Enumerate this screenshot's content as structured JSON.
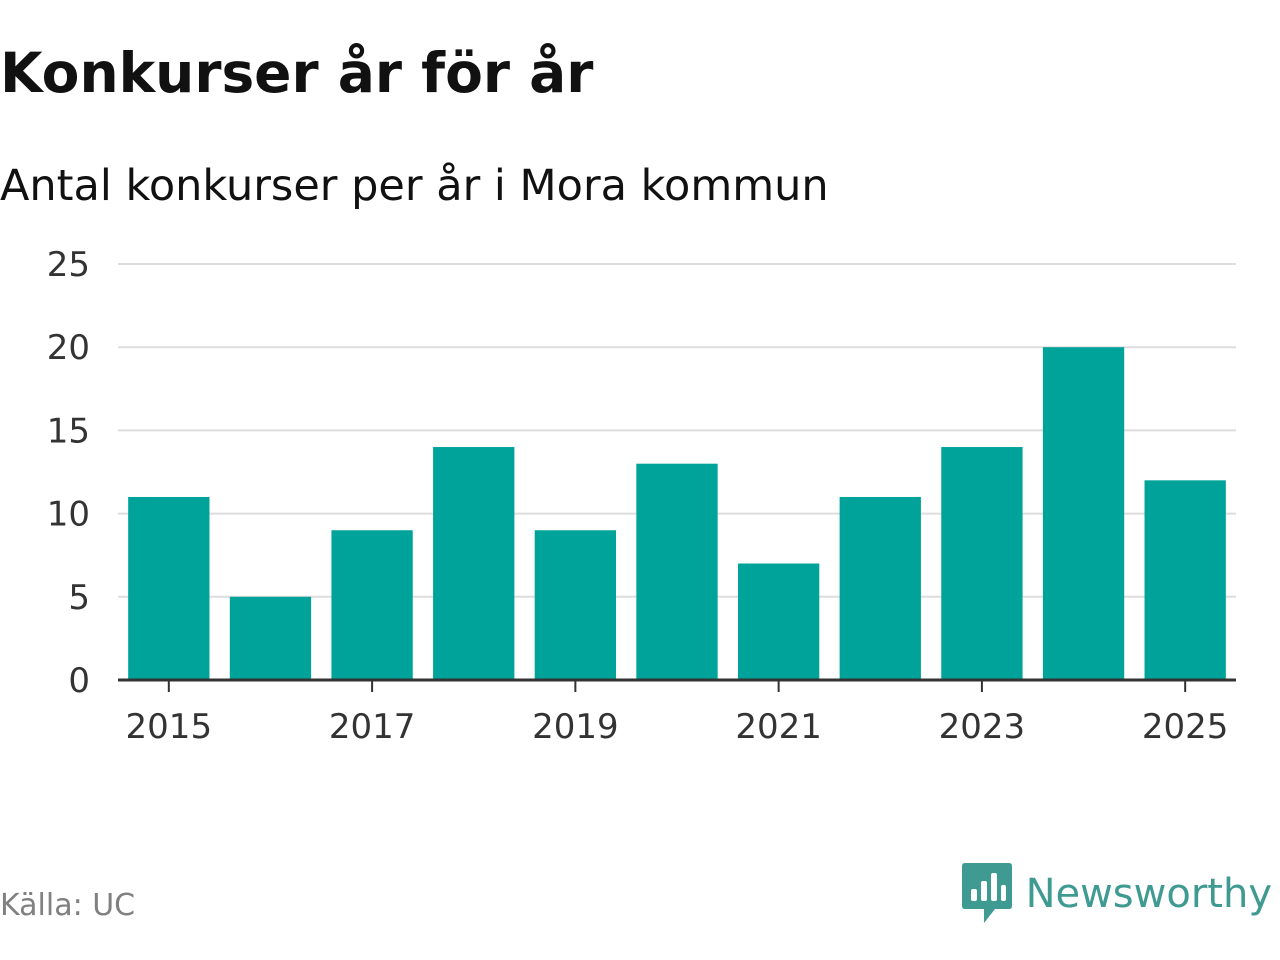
{
  "header": {
    "title": "Konkurser år för år",
    "subtitle": "Antal konkurser per år i Mora kommun"
  },
  "footer": {
    "source": "Källa: UC",
    "brand": "Newsworthy",
    "brand_icon": "newsworthy-logo-icon",
    "brand_color": "#3f9a91"
  },
  "chart_data": {
    "type": "bar",
    "categories": [
      "2015",
      "2016",
      "2017",
      "2018",
      "2019",
      "2020",
      "2021",
      "2022",
      "2023",
      "2024",
      "2025"
    ],
    "values": [
      11,
      5,
      9,
      14,
      9,
      13,
      7,
      11,
      14,
      20,
      12
    ],
    "x_tick_labels": [
      "2015",
      "2017",
      "2019",
      "2021",
      "2023",
      "2025"
    ],
    "y_ticks": [
      0,
      5,
      10,
      15,
      20,
      25
    ],
    "ylim": [
      0,
      25
    ],
    "xlabel": "",
    "ylabel": "",
    "grid": true,
    "bar_color": "#00a39a",
    "grid_color": "#dddddd",
    "axis_color": "#333333"
  }
}
